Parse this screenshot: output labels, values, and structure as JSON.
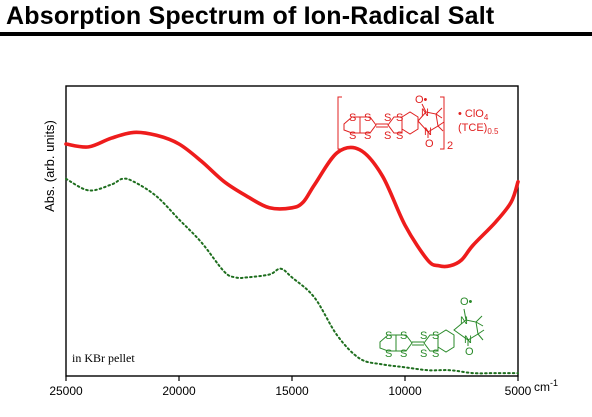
{
  "title": "Absorption Spectrum of Ion-Radical Salt",
  "chart_data": {
    "type": "line",
    "title": "Absorption Spectrum of Ion-Radical Salt",
    "xlabel": "cm-1",
    "ylabel": "Abs. (arb. units)",
    "xlim": [
      25000,
      5000
    ],
    "x_reversed": true,
    "ylim": [
      0,
      1
    ],
    "xticks": [
      25000,
      20000,
      15000,
      10000,
      5000
    ],
    "xtick_labels": [
      "25000",
      "20000",
      "15000",
      "10000",
      "5000"
    ],
    "x_unit_label": "cm",
    "x_unit_exponent": "-1",
    "annotation": "in KBr pellet",
    "series": [
      {
        "color": "#ee1c1c",
        "style": "solid",
        "x": [
          25000,
          24000,
          23000,
          22000,
          21000,
          20000,
          19000,
          18000,
          17000,
          16000,
          15000,
          14500,
          14000,
          13000,
          12000,
          11000,
          10000,
          9000,
          8500,
          8000,
          7500,
          7000,
          6000,
          5300,
          5000
        ],
        "y": [
          0.8,
          0.79,
          0.82,
          0.84,
          0.83,
          0.8,
          0.74,
          0.67,
          0.62,
          0.58,
          0.58,
          0.6,
          0.66,
          0.77,
          0.78,
          0.69,
          0.52,
          0.4,
          0.38,
          0.38,
          0.4,
          0.45,
          0.53,
          0.6,
          0.67
        ]
      },
      {
        "color": "#1e6e1e",
        "style": "dotted",
        "x": [
          25000,
          24000,
          23000,
          22500,
          22000,
          21000,
          20000,
          19000,
          18000,
          17500,
          17000,
          16000,
          15500,
          15000,
          14000,
          13000,
          12000,
          11000,
          10000,
          9000,
          8000,
          7000,
          6000,
          5000
        ],
        "y": [
          0.68,
          0.64,
          0.66,
          0.68,
          0.67,
          0.62,
          0.54,
          0.46,
          0.36,
          0.34,
          0.34,
          0.35,
          0.37,
          0.34,
          0.27,
          0.14,
          0.06,
          0.04,
          0.03,
          0.02,
          0.02,
          0.01,
          0.01,
          0.01
        ]
      }
    ],
    "compound_labels": {
      "red": {
        "bracket_subscript": "2",
        "counterion": "• ClO",
        "counterion_subscript": "4",
        "solvent": "(TCE)",
        "solvent_subscript": "0.5",
        "radical_mark": "O•",
        "atom_labels": [
          "S",
          "S",
          "S",
          "S",
          "S",
          "S",
          "S",
          "S",
          "N",
          "N",
          "O"
        ]
      },
      "green": {
        "radical_mark": "O•",
        "atom_labels": [
          "S",
          "S",
          "S",
          "S",
          "S",
          "S",
          "S",
          "S",
          "N",
          "N",
          "O"
        ]
      }
    }
  }
}
